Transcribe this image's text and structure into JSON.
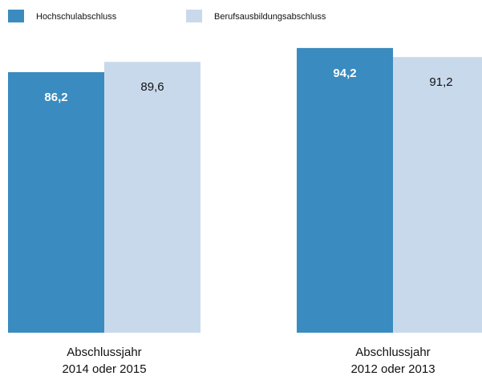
{
  "chart_data": {
    "type": "bar",
    "categories": [
      "Abschlussjahr\n2014 oder 2015",
      "Abschlussjahr\n2012 oder 2013"
    ],
    "series": [
      {
        "name": "Hochschulabschluss",
        "color": "#3a8bbf",
        "values": [
          86.2,
          94.2
        ],
        "value_labels": [
          "86,2",
          "94,2"
        ]
      },
      {
        "name": "Berufsausbildungsabschluss",
        "color": "#c9d9ec",
        "values": [
          89.6,
          91.2
        ],
        "value_labels": [
          "89,6",
          "91,2"
        ]
      }
    ],
    "ylim": [
      0,
      100
    ],
    "legend": "top"
  }
}
